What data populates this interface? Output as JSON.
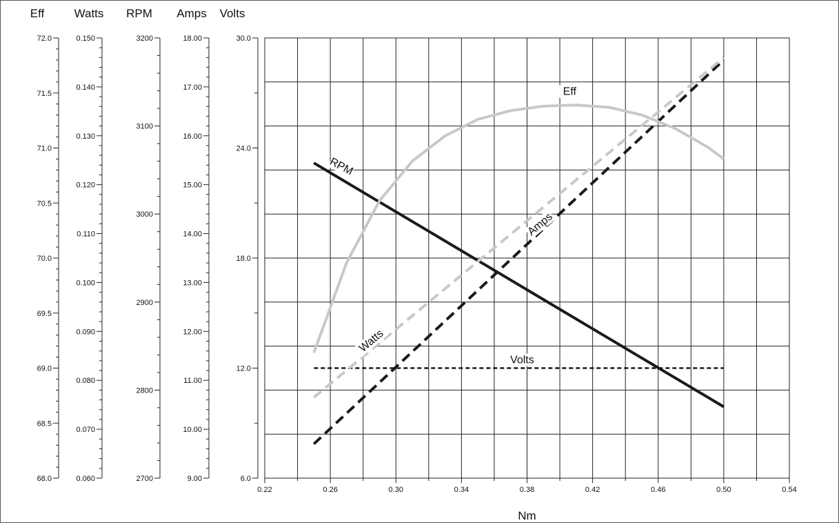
{
  "chart_data": {
    "type": "line",
    "xlabel": "Nm",
    "xlim": [
      0.22,
      0.54
    ],
    "x_ticks": [
      "0.22",
      "0.26",
      "0.30",
      "0.34",
      "0.38",
      "0.42",
      "0.46",
      "0.50",
      "0.54"
    ],
    "grid": true,
    "axes": [
      {
        "name": "Eff",
        "range": [
          68.0,
          72.0
        ],
        "ticks": [
          "68.0",
          "68.5",
          "69.0",
          "69.5",
          "70.0",
          "70.5",
          "71.0",
          "71.5",
          "72.0"
        ]
      },
      {
        "name": "Watts",
        "range": [
          0.06,
          0.15
        ],
        "ticks": [
          "0.060",
          "0.070",
          "0.080",
          "0.090",
          "0.100",
          "0.110",
          "0.120",
          "0.130",
          "0.140",
          "0.150"
        ]
      },
      {
        "name": "RPM",
        "range": [
          2700,
          3200
        ],
        "ticks": [
          "2700",
          "2800",
          "2900",
          "3000",
          "3100",
          "3200"
        ]
      },
      {
        "name": "Amps",
        "range": [
          9.0,
          18.0
        ],
        "ticks": [
          "9.00",
          "10.00",
          "11.00",
          "12.00",
          "13.00",
          "14.00",
          "15.00",
          "16.00",
          "17.00",
          "18.00"
        ]
      },
      {
        "name": "Volts",
        "range": [
          6.0,
          30.0
        ],
        "ticks": [
          "6.0",
          "12.0",
          "18.0",
          "24.0",
          "30.0"
        ]
      }
    ],
    "series": [
      {
        "name": "RPM",
        "axis": "RPM",
        "color": "#1a1a1a",
        "style": "solid",
        "x": [
          0.25,
          0.5
        ],
        "y": [
          3058,
          2781
        ]
      },
      {
        "name": "Amps",
        "axis": "Amps",
        "color": "#1a1a1a",
        "style": "dashed",
        "x": [
          0.25,
          0.5
        ],
        "y": [
          9.7,
          17.55
        ]
      },
      {
        "name": "Volts",
        "axis": "Volts",
        "color": "#1a1a1a",
        "style": "dotted",
        "x": [
          0.25,
          0.5
        ],
        "y": [
          12.0,
          12.0
        ]
      },
      {
        "name": "Watts",
        "axis": "Watts",
        "color": "#c8c8c8",
        "style": "dashed",
        "x": [
          0.25,
          0.5
        ],
        "y": [
          0.0765,
          0.146
        ]
      },
      {
        "name": "Eff",
        "axis": "Eff",
        "color": "#c8c8c8",
        "style": "solid",
        "x": [
          0.25,
          0.27,
          0.29,
          0.31,
          0.33,
          0.35,
          0.37,
          0.39,
          0.41,
          0.43,
          0.45,
          0.47,
          0.49,
          0.5
        ],
        "y": [
          69.14,
          69.96,
          70.52,
          70.88,
          71.11,
          71.26,
          71.34,
          71.38,
          71.39,
          71.37,
          71.3,
          71.18,
          71.01,
          70.9
        ]
      }
    ]
  }
}
